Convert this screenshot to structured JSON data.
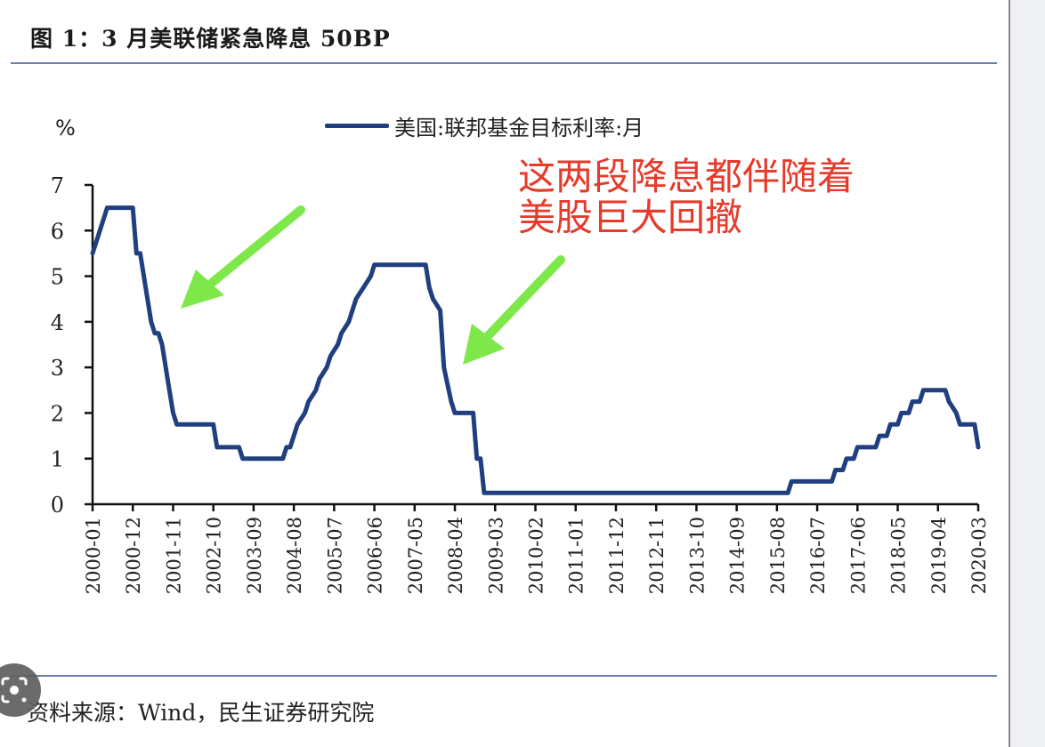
{
  "figure": {
    "title": "图 1：3 月美联储紧急降息 50BP",
    "unit_label": "%",
    "legend_label": "美国:联邦基金目标利率:月",
    "annotation_lines": [
      "这两段降息都伴随着",
      "美股巨大回撤"
    ],
    "source": "资料来源：Wind，民生证券研究院",
    "colors": {
      "series": "#1f3f7f",
      "annotation_text": "#e63a2a",
      "arrows": "#7ee84a",
      "rules": "#6d7fb0"
    }
  },
  "overlay": {
    "lens_button": "google-lens-icon"
  },
  "chart_data": {
    "type": "line",
    "title": "图 1：3 月美联储紧急降息 50BP",
    "xlabel": "",
    "ylabel": "%",
    "ylim": [
      0,
      7
    ],
    "yticks": [
      0,
      1,
      2,
      3,
      4,
      5,
      6,
      7
    ],
    "grid": false,
    "legend_position": "top",
    "categories": [
      "2000-01",
      "2000-12",
      "2001-11",
      "2002-10",
      "2003-09",
      "2004-08",
      "2005-07",
      "2006-06",
      "2007-05",
      "2008-04",
      "2009-03",
      "2010-02",
      "2011-01",
      "2011-12",
      "2012-11",
      "2013-10",
      "2014-09",
      "2015-08",
      "2016-07",
      "2017-06",
      "2018-05",
      "2019-04",
      "2020-03"
    ],
    "series": [
      {
        "name": "美国:联邦基金目标利率:月",
        "points": [
          [
            "2000-01",
            5.5
          ],
          [
            "2000-02",
            5.75
          ],
          [
            "2000-03",
            6.0
          ],
          [
            "2000-05",
            6.5
          ],
          [
            "2000-12",
            6.5
          ],
          [
            "2001-01",
            5.5
          ],
          [
            "2001-02",
            5.5
          ],
          [
            "2001-03",
            5.0
          ],
          [
            "2001-04",
            4.5
          ],
          [
            "2001-05",
            4.0
          ],
          [
            "2001-06",
            3.75
          ],
          [
            "2001-07",
            3.75
          ],
          [
            "2001-08",
            3.5
          ],
          [
            "2001-09",
            3.0
          ],
          [
            "2001-10",
            2.5
          ],
          [
            "2001-11",
            2.0
          ],
          [
            "2001-12",
            1.75
          ],
          [
            "2002-10",
            1.75
          ],
          [
            "2002-11",
            1.25
          ],
          [
            "2003-05",
            1.25
          ],
          [
            "2003-06",
            1.0
          ],
          [
            "2004-05",
            1.0
          ],
          [
            "2004-06",
            1.25
          ],
          [
            "2004-07",
            1.25
          ],
          [
            "2004-08",
            1.5
          ],
          [
            "2004-09",
            1.75
          ],
          [
            "2004-11",
            2.0
          ],
          [
            "2004-12",
            2.25
          ],
          [
            "2005-02",
            2.5
          ],
          [
            "2005-03",
            2.75
          ],
          [
            "2005-05",
            3.0
          ],
          [
            "2005-06",
            3.25
          ],
          [
            "2005-08",
            3.5
          ],
          [
            "2005-09",
            3.75
          ],
          [
            "2005-11",
            4.0
          ],
          [
            "2005-12",
            4.25
          ],
          [
            "2006-01",
            4.5
          ],
          [
            "2006-03",
            4.75
          ],
          [
            "2006-05",
            5.0
          ],
          [
            "2006-06",
            5.25
          ],
          [
            "2007-08",
            5.25
          ],
          [
            "2007-09",
            4.75
          ],
          [
            "2007-10",
            4.5
          ],
          [
            "2007-12",
            4.25
          ],
          [
            "2008-01",
            3.0
          ],
          [
            "2008-03",
            2.25
          ],
          [
            "2008-04",
            2.0
          ],
          [
            "2008-09",
            2.0
          ],
          [
            "2008-10",
            1.0
          ],
          [
            "2008-11",
            1.0
          ],
          [
            "2008-12",
            0.25
          ],
          [
            "2015-11",
            0.25
          ],
          [
            "2015-12",
            0.5
          ],
          [
            "2016-11",
            0.5
          ],
          [
            "2016-12",
            0.75
          ],
          [
            "2017-02",
            0.75
          ],
          [
            "2017-03",
            1.0
          ],
          [
            "2017-05",
            1.0
          ],
          [
            "2017-06",
            1.25
          ],
          [
            "2017-11",
            1.25
          ],
          [
            "2017-12",
            1.5
          ],
          [
            "2018-02",
            1.5
          ],
          [
            "2018-03",
            1.75
          ],
          [
            "2018-05",
            1.75
          ],
          [
            "2018-06",
            2.0
          ],
          [
            "2018-08",
            2.0
          ],
          [
            "2018-09",
            2.25
          ],
          [
            "2018-11",
            2.25
          ],
          [
            "2018-12",
            2.5
          ],
          [
            "2019-06",
            2.5
          ],
          [
            "2019-07",
            2.25
          ],
          [
            "2019-09",
            2.0
          ],
          [
            "2019-10",
            1.75
          ],
          [
            "2020-02",
            1.75
          ],
          [
            "2020-03",
            1.25
          ]
        ]
      }
    ],
    "annotations": [
      {
        "text": "这两段降息都伴随着美股巨大回撤",
        "type": "callout",
        "arrows_to": [
          "2001-2002 rate cuts",
          "2007-2008 rate cuts"
        ]
      }
    ]
  }
}
